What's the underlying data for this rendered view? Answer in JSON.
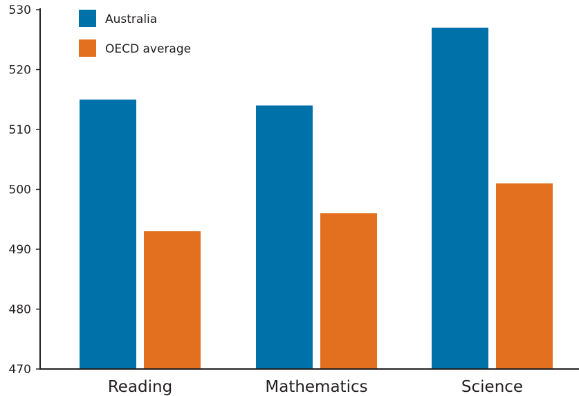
{
  "chart_data": {
    "type": "bar",
    "title": "",
    "xlabel": "",
    "ylabel": "",
    "categories": [
      "Reading",
      "Mathematics",
      "Science"
    ],
    "series": [
      {
        "name": "Australia",
        "color": "#0072a9",
        "values": [
          515,
          514,
          527
        ]
      },
      {
        "name": "OECD average",
        "color": "#e2701e",
        "values": [
          493,
          496,
          501
        ]
      }
    ],
    "ylim": [
      470,
      530
    ],
    "yticks": [
      470,
      480,
      490,
      500,
      510,
      520,
      530
    ],
    "grid": false,
    "legend_position": "top-left"
  }
}
